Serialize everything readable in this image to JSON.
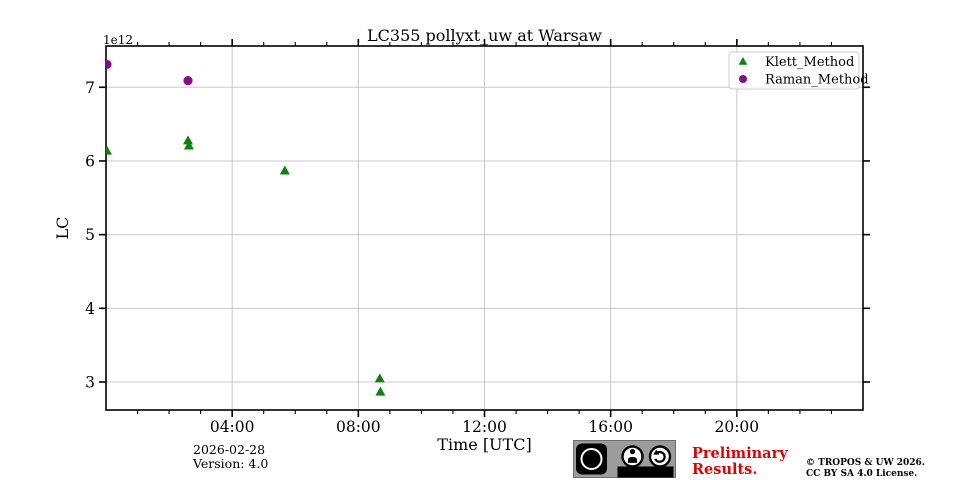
{
  "chart_data": {
    "type": "scatter",
    "title": "LC355 pollyxt_uw at Warsaw",
    "xlabel": "Time [UTC]",
    "ylabel": "LC",
    "y_offset_text": "1e12",
    "xlim": [
      0,
      24
    ],
    "ylim_e12": [
      2.62,
      7.56
    ],
    "grid": true,
    "grid_color": "#c8c8c8",
    "x_ticks": [
      {
        "t": 4,
        "label": "04:00"
      },
      {
        "t": 8,
        "label": "08:00"
      },
      {
        "t": 12,
        "label": "12:00"
      },
      {
        "t": 16,
        "label": "16:00"
      },
      {
        "t": 20,
        "label": "20:00"
      }
    ],
    "x_minor_ticks_t": [
      1,
      2,
      3,
      5,
      6,
      7,
      9,
      10,
      11,
      13,
      14,
      15,
      17,
      18,
      19,
      21,
      22,
      23
    ],
    "y_ticks": [
      {
        "v": 3,
        "label": "3"
      },
      {
        "v": 4,
        "label": "4"
      },
      {
        "v": 5,
        "label": "5"
      },
      {
        "v": 6,
        "label": "6"
      },
      {
        "v": 7,
        "label": "7"
      }
    ],
    "legend": {
      "position": "upper right",
      "entries": [
        "Klett_Method",
        "Raman_Method"
      ]
    },
    "series": [
      {
        "name": "Klett_Method",
        "marker": "triangle",
        "color": "#0f7f0f",
        "points": [
          {
            "time": "00:02",
            "t_hours": 0.03,
            "lc_e12": 6.14
          },
          {
            "time": "02:36",
            "t_hours": 2.6,
            "lc_e12": 6.28
          },
          {
            "time": "02:38",
            "t_hours": 2.63,
            "lc_e12": 6.21
          },
          {
            "time": "05:40",
            "t_hours": 5.67,
            "lc_e12": 5.87
          },
          {
            "time": "08:41",
            "t_hours": 8.68,
            "lc_e12": 3.05
          },
          {
            "time": "08:42",
            "t_hours": 8.7,
            "lc_e12": 2.87
          }
        ]
      },
      {
        "name": "Raman_Method",
        "marker": "circle",
        "color": "#8a0b8a",
        "points": [
          {
            "time": "00:02",
            "t_hours": 0.03,
            "lc_e12": 7.31
          },
          {
            "time": "02:36",
            "t_hours": 2.6,
            "lc_e12": 7.09
          }
        ]
      }
    ]
  },
  "footer": {
    "date": "2026-02-28",
    "version": "Version: 4.0",
    "preliminary_line1": "Preliminary",
    "preliminary_line2": "Results.",
    "preliminary_color": "#e50000",
    "copyright_line1": "© TROPOS & UW 2026.",
    "copyright_line2": "CC BY SA 4.0 License.",
    "cc_badge": {
      "cc_label": "cc",
      "by_label": "BY",
      "sa_label": "SA",
      "background_color": "#9c9c9c"
    }
  }
}
